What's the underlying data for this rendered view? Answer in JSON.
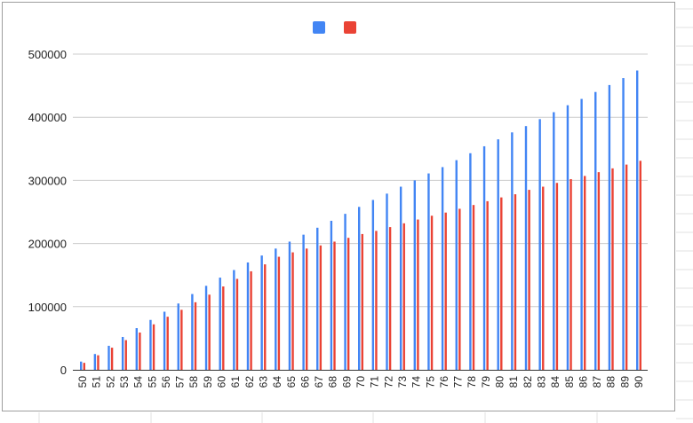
{
  "chart_data": {
    "type": "bar",
    "title": "",
    "xlabel": "",
    "ylabel": "",
    "ylim": [
      0,
      500000
    ],
    "yticks": [
      0,
      100000,
      200000,
      300000,
      400000,
      500000
    ],
    "legend": "top-center",
    "grid": true,
    "categories": [
      "50",
      "51",
      "52",
      "53",
      "54",
      "55",
      "56",
      "57",
      "58",
      "59",
      "60",
      "61",
      "62",
      "63",
      "64",
      "65",
      "66",
      "67",
      "68",
      "69",
      "70",
      "71",
      "72",
      "73",
      "74",
      "75",
      "76",
      "77",
      "78",
      "79",
      "80",
      "81",
      "82",
      "83",
      "84",
      "85",
      "86",
      "87",
      "88",
      "89",
      "90"
    ],
    "series": [
      {
        "color": "#4285f4",
        "values": [
          13000,
          25000,
          38000,
          52000,
          66000,
          79000,
          92000,
          105000,
          120000,
          133000,
          146000,
          158000,
          170000,
          181000,
          192000,
          203000,
          214000,
          225000,
          236000,
          247000,
          258000,
          269000,
          279000,
          290000,
          300000,
          311000,
          321000,
          332000,
          343000,
          354000,
          365000,
          376000,
          386000,
          397000,
          408000,
          419000,
          429000,
          440000,
          451000,
          462000,
          474000
        ]
      },
      {
        "color": "#ea4335",
        "values": [
          11000,
          23000,
          35000,
          47000,
          59000,
          72000,
          84000,
          95000,
          107000,
          119000,
          132000,
          144000,
          156000,
          167000,
          179000,
          186000,
          192000,
          197000,
          203000,
          209000,
          215000,
          220000,
          226000,
          232000,
          238000,
          244000,
          249000,
          255000,
          261000,
          267000,
          273000,
          278000,
          285000,
          290000,
          296000,
          302000,
          307000,
          313000,
          319000,
          325000,
          331000
        ]
      }
    ]
  }
}
